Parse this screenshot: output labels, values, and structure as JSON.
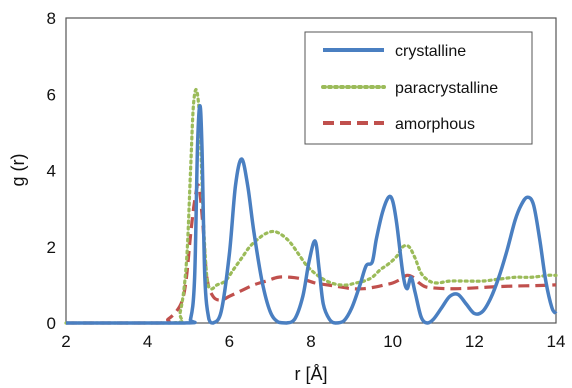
{
  "chart_data": {
    "type": "line",
    "xlabel": "r [Å]",
    "ylabel": "g (r)",
    "xlim": [
      2,
      14
    ],
    "ylim": [
      0,
      8
    ],
    "x_ticks": [
      "2",
      "4",
      "6",
      "8",
      "10",
      "12",
      "14"
    ],
    "y_ticks": [
      "0",
      "2",
      "4",
      "6",
      "8"
    ],
    "grid": false,
    "legend_position": "top-right",
    "series": [
      {
        "name": "crystalline",
        "color": "#4a7fc1",
        "style": "solid",
        "x": [
          2,
          4.9,
          5.05,
          5.15,
          5.22,
          5.28,
          5.33,
          5.4,
          5.5,
          5.6,
          5.8,
          6.0,
          6.15,
          6.3,
          6.45,
          6.6,
          6.8,
          7.0,
          7.2,
          7.4,
          7.6,
          7.8,
          7.95,
          8.1,
          8.2,
          8.3,
          8.45,
          8.6,
          8.8,
          9.0,
          9.2,
          9.35,
          9.5,
          9.6,
          9.75,
          9.9,
          10.0,
          10.1,
          10.25,
          10.35,
          10.45,
          10.55,
          10.7,
          10.85,
          11.0,
          11.2,
          11.4,
          11.6,
          11.8,
          12.0,
          12.2,
          12.4,
          12.6,
          12.8,
          13.0,
          13.15,
          13.3,
          13.45,
          13.6,
          13.75,
          13.9,
          14.0
        ],
        "y": [
          0,
          0,
          0.1,
          1.2,
          4.6,
          5.7,
          4.6,
          1.2,
          0.1,
          0,
          0.3,
          1.8,
          3.6,
          4.3,
          3.6,
          2.4,
          1.1,
          0.3,
          0.02,
          0,
          0.1,
          0.7,
          1.6,
          2.15,
          1.4,
          0.5,
          0.1,
          0,
          0.05,
          0.4,
          1.0,
          1.5,
          1.6,
          2.2,
          2.9,
          3.3,
          3.2,
          2.6,
          1.3,
          0.9,
          1.2,
          0.8,
          0.15,
          0,
          0.1,
          0.4,
          0.7,
          0.75,
          0.5,
          0.25,
          0.3,
          0.65,
          1.2,
          1.9,
          2.7,
          3.1,
          3.3,
          3.1,
          2.2,
          1.1,
          0.4,
          0.25
        ]
      },
      {
        "name": "paracrystalline",
        "color": "#9bbb59",
        "style": "dotted",
        "x": [
          2,
          4.6,
          4.8,
          4.95,
          5.05,
          5.12,
          5.2,
          5.28,
          5.36,
          5.45,
          5.55,
          5.7,
          5.9,
          6.1,
          6.3,
          6.5,
          6.7,
          6.9,
          7.1,
          7.3,
          7.5,
          7.7,
          7.9,
          8.1,
          8.3,
          8.5,
          8.7,
          8.9,
          9.1,
          9.3,
          9.5,
          9.7,
          9.9,
          10.1,
          10.25,
          10.4,
          10.55,
          10.7,
          10.9,
          11.1,
          11.4,
          11.8,
          12.2,
          12.6,
          13.0,
          13.4,
          13.8,
          14.0
        ],
        "y": [
          0,
          0,
          0.3,
          1.6,
          4.0,
          5.7,
          6.1,
          5.2,
          2.8,
          1.2,
          0.9,
          1.0,
          1.1,
          1.4,
          1.7,
          2.0,
          2.2,
          2.35,
          2.4,
          2.3,
          2.1,
          1.8,
          1.5,
          1.3,
          1.15,
          1.05,
          1.0,
          1.0,
          1.05,
          1.1,
          1.2,
          1.4,
          1.55,
          1.75,
          2.0,
          2.0,
          1.7,
          1.3,
          1.1,
          1.05,
          1.1,
          1.1,
          1.1,
          1.15,
          1.2,
          1.2,
          1.25,
          1.25
        ]
      },
      {
        "name": "amorphous",
        "color": "#c0504d",
        "style": "dashed",
        "x": [
          2,
          4.3,
          4.5,
          4.7,
          4.85,
          4.95,
          5.05,
          5.15,
          5.25,
          5.35,
          5.45,
          5.6,
          5.8,
          6.0,
          6.3,
          6.6,
          6.9,
          7.2,
          7.5,
          7.8,
          8.1,
          8.4,
          8.7,
          9.0,
          9.3,
          9.6,
          9.8,
          10.0,
          10.2,
          10.35,
          10.5,
          10.65,
          10.8,
          11.0,
          11.3,
          11.6,
          12.0,
          12.5,
          13.0,
          13.5,
          14.0
        ],
        "y": [
          0,
          0,
          0.1,
          0.3,
          0.6,
          1.2,
          2.3,
          3.2,
          3.6,
          2.6,
          1.2,
          0.7,
          0.6,
          0.7,
          0.85,
          1.0,
          1.1,
          1.2,
          1.2,
          1.15,
          1.05,
          1.0,
          0.95,
          0.9,
          0.9,
          0.95,
          1.0,
          1.05,
          1.15,
          1.25,
          1.2,
          1.05,
          0.95,
          0.92,
          0.9,
          0.9,
          0.92,
          0.95,
          0.97,
          0.98,
          1.0
        ]
      }
    ]
  }
}
